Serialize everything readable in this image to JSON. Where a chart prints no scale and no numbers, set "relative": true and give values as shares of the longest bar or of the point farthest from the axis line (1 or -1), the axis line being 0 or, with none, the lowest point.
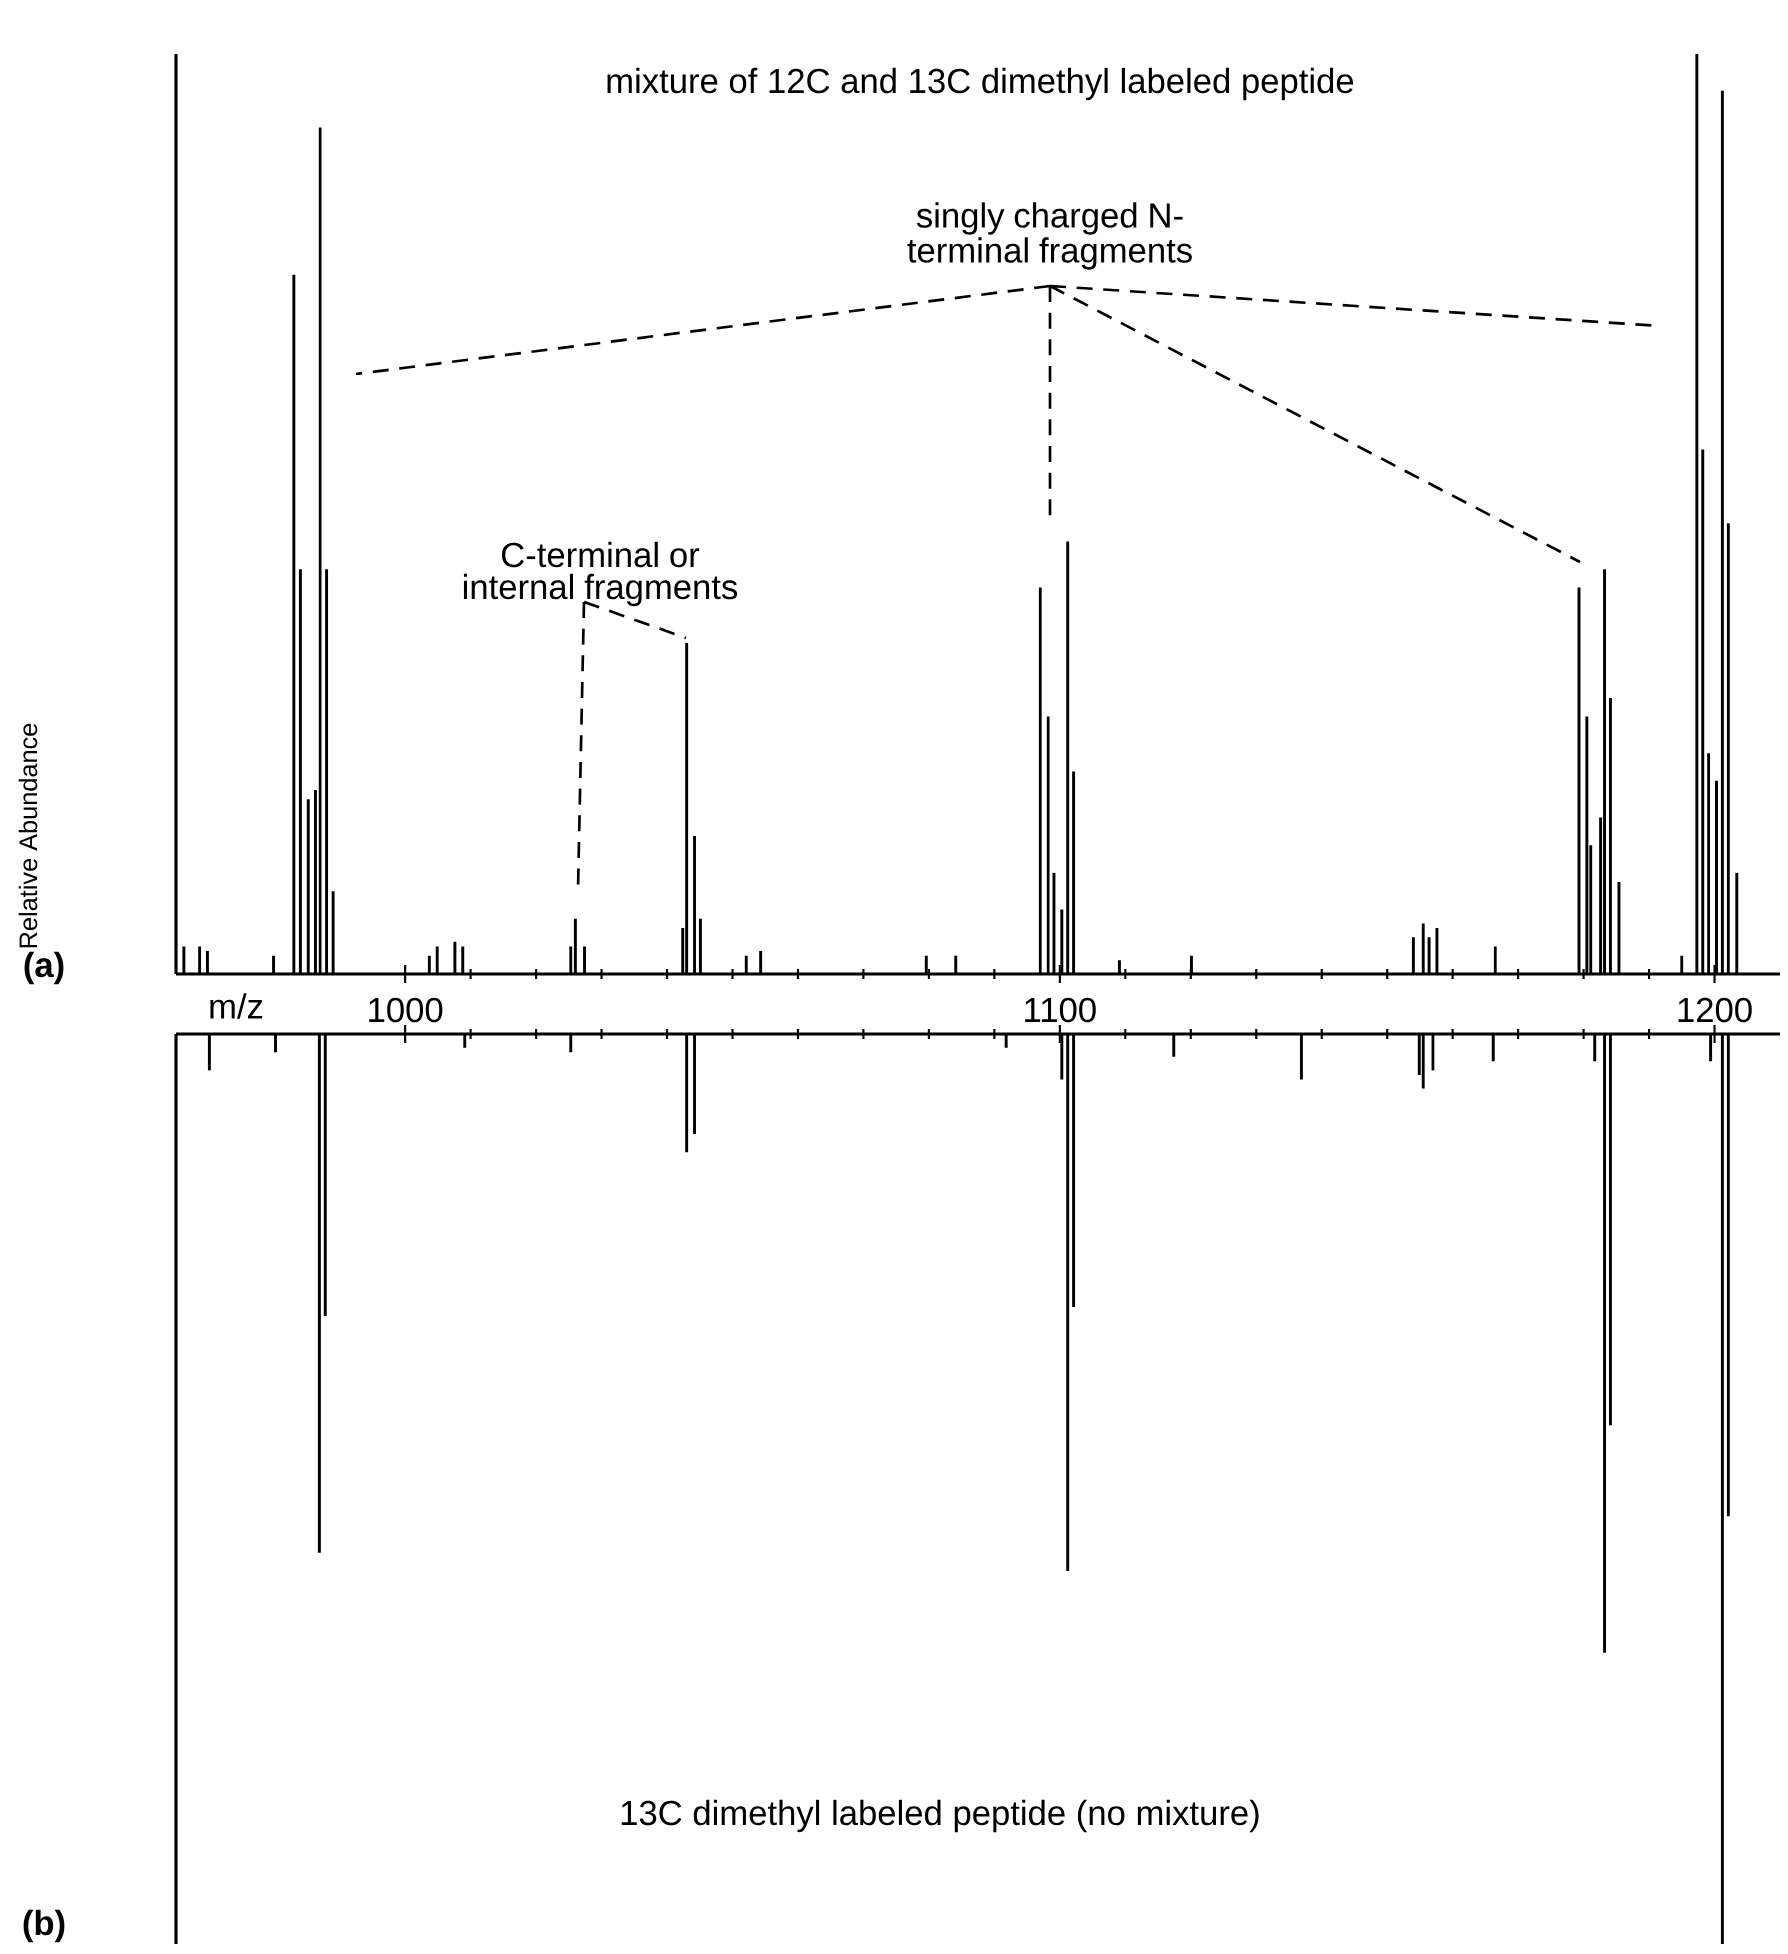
{
  "chart_data": [
    {
      "type": "bar",
      "relative": true,
      "title": "mixture of 12C and 13C dimethyl labeled peptide",
      "xlabel": "m/z",
      "ylabel": "Relative Abundance",
      "color": "#000000",
      "annotations": [
        "singly charged N-terminal fragments",
        "C-terminal or internal fragments",
        "(a)"
      ],
      "xlim": [
        965,
        1210
      ],
      "xticks": [
        1000,
        1100,
        1200
      ],
      "x": [
        966.2,
        968.6,
        969.8,
        979.9,
        983,
        984,
        985.2,
        986.3,
        987,
        988,
        989,
        1003.7,
        1004.9,
        1007.6,
        1008.8,
        1025.3,
        1026,
        1027.4,
        1042.4,
        1043,
        1044.2,
        1045.1,
        1052.1,
        1054.3,
        1079.6,
        1084.1,
        1097,
        1098.2,
        1099.1,
        1100.3,
        1101.2,
        1102.1,
        1109.1,
        1120.1,
        1154,
        1155.5,
        1156.4,
        1157.6,
        1166.5,
        1179.3,
        1180.5,
        1181.1,
        1182.6,
        1183.2,
        1184.1,
        1185.4,
        1195,
        1197.3,
        1198.2,
        1199.1,
        1200.3,
        1201.2,
        1202.1,
        1203.4
      ],
      "values": [
        0.03,
        0.03,
        0.025,
        0.02,
        0.76,
        0.44,
        0.19,
        0.2,
        0.92,
        0.44,
        0.09,
        0.02,
        0.03,
        0.035,
        0.03,
        0.03,
        0.06,
        0.03,
        0.05,
        0.36,
        0.15,
        0.06,
        0.02,
        0.025,
        0.02,
        0.02,
        0.42,
        0.28,
        0.11,
        0.07,
        0.47,
        0.22,
        0.015,
        0.02,
        0.04,
        0.055,
        0.04,
        0.05,
        0.03,
        0.42,
        0.28,
        0.14,
        0.17,
        0.44,
        0.3,
        0.1,
        0.02,
        1.0,
        0.57,
        0.24,
        0.21,
        0.96,
        0.49,
        0.11
      ]
    },
    {
      "type": "bar",
      "relative": true,
      "title": "13C dimethyl labeled peptide (no mixture)",
      "color": "#000000",
      "tick_labels": false,
      "annotations": [
        "(b)"
      ],
      "xlim": [
        965,
        1210
      ],
      "xticks": [
        1000,
        1100,
        1200
      ],
      "x": [
        970.1,
        980.2,
        986.9,
        987.8,
        1009.1,
        1025.3,
        1043,
        1044.2,
        1091.8,
        1100.3,
        1101.2,
        1102.1,
        1117.4,
        1136.9,
        1154.9,
        1155.5,
        1157,
        1166.2,
        1181.7,
        1183.2,
        1184.1,
        1199.4,
        1201.2,
        1202.1
      ],
      "values": [
        -0.04,
        -0.02,
        -0.57,
        -0.31,
        -0.015,
        -0.02,
        -0.13,
        -0.11,
        -0.015,
        -0.05,
        -0.59,
        -0.3,
        -0.025,
        -0.05,
        -0.045,
        -0.06,
        -0.04,
        -0.03,
        -0.03,
        -0.68,
        -0.43,
        -0.03,
        -1.0,
        -0.53
      ]
    }
  ]
}
